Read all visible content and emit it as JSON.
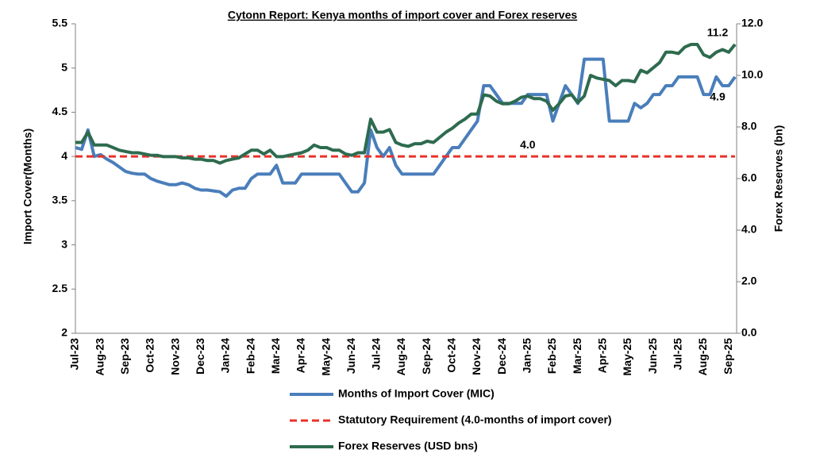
{
  "chart_data": {
    "type": "line",
    "title": "Cytonn Report: Kenya months of import cover and Forex reserves",
    "y_label": "Import Cover(Months)",
    "y2_label": "Forex Reserves (bn)",
    "categories": [
      "Jul-23",
      null,
      null,
      null,
      "Aug-23",
      null,
      null,
      null,
      "Sep-23",
      null,
      null,
      null,
      "Oct-23",
      null,
      null,
      null,
      "Nov-23",
      null,
      null,
      null,
      "Dec-23",
      null,
      null,
      null,
      "Jan-24",
      null,
      null,
      null,
      "Feb-24",
      null,
      null,
      null,
      "Mar-24",
      null,
      null,
      null,
      "Apr-24",
      null,
      null,
      null,
      "May-24",
      null,
      null,
      null,
      "Jun-24",
      null,
      null,
      null,
      "Jul-24",
      null,
      null,
      null,
      "Aug-24",
      null,
      null,
      null,
      "Sep-24",
      null,
      null,
      null,
      "Oct-24",
      null,
      null,
      null,
      "Nov-24",
      null,
      null,
      null,
      "Dec-24",
      null,
      null,
      null,
      "Jan-25",
      null,
      null,
      null,
      "Feb-25",
      null,
      null,
      null,
      "Mar-25",
      null,
      null,
      null,
      "Apr-25",
      null,
      null,
      null,
      "May-25",
      null,
      null,
      null,
      "Jun-25",
      null,
      null,
      null,
      "Jul-25",
      null,
      null,
      null,
      "Aug-25",
      null,
      null,
      null,
      "Sep-25",
      null
    ],
    "series": [
      {
        "name": "Months of Import Cover (MIC)",
        "color": "#4a7ebb",
        "axis": "y",
        "style": "solid",
        "values": [
          4.1,
          4.08,
          4.3,
          4.0,
          4.02,
          3.97,
          3.93,
          3.88,
          3.83,
          3.81,
          3.8,
          3.8,
          3.75,
          3.72,
          3.7,
          3.68,
          3.68,
          3.7,
          3.68,
          3.64,
          3.62,
          3.62,
          3.61,
          3.6,
          3.55,
          3.62,
          3.64,
          3.64,
          3.75,
          3.8,
          3.8,
          3.8,
          3.9,
          3.7,
          3.7,
          3.7,
          3.8,
          3.8,
          3.8,
          3.8,
          3.8,
          3.8,
          3.8,
          3.7,
          3.6,
          3.6,
          3.7,
          4.3,
          4.1,
          4.0,
          4.1,
          3.9,
          3.8,
          3.8,
          3.8,
          3.8,
          3.8,
          3.8,
          3.9,
          4.0,
          4.1,
          4.1,
          4.2,
          4.3,
          4.4,
          4.8,
          4.8,
          4.7,
          4.6,
          4.6,
          4.6,
          4.6,
          4.7,
          4.7,
          4.7,
          4.7,
          4.4,
          4.6,
          4.8,
          4.7,
          4.6,
          5.1,
          5.1,
          5.1,
          5.1,
          4.4,
          4.4,
          4.4,
          4.4,
          4.6,
          4.55,
          4.6,
          4.7,
          4.7,
          4.8,
          4.8,
          4.9,
          4.9,
          4.9,
          4.9,
          4.7,
          4.7,
          4.9,
          4.8,
          4.8,
          4.9
        ]
      },
      {
        "name": "Statutory Requirement (4.0-months of import cover)",
        "color": "#e8322a",
        "axis": "y",
        "style": "dashed",
        "values": [
          4,
          4,
          4,
          4,
          4,
          4,
          4,
          4,
          4,
          4,
          4,
          4,
          4,
          4,
          4,
          4,
          4,
          4,
          4,
          4,
          4,
          4,
          4,
          4,
          4,
          4,
          4,
          4,
          4,
          4,
          4,
          4,
          4,
          4,
          4,
          4,
          4,
          4,
          4,
          4,
          4,
          4,
          4,
          4,
          4,
          4,
          4,
          4,
          4,
          4,
          4,
          4,
          4,
          4,
          4,
          4,
          4,
          4,
          4,
          4,
          4,
          4,
          4,
          4,
          4,
          4,
          4,
          4,
          4,
          4,
          4,
          4,
          4,
          4,
          4,
          4,
          4,
          4,
          4,
          4,
          4,
          4,
          4,
          4,
          4,
          4,
          4,
          4,
          4,
          4,
          4,
          4,
          4,
          4,
          4,
          4,
          4,
          4,
          4,
          4,
          4,
          4,
          4,
          4,
          4,
          4
        ]
      },
      {
        "name": "Forex Reserves (USD bns)",
        "color": "#2e6b4f",
        "axis": "y2",
        "style": "solid",
        "values": [
          7.4,
          7.4,
          7.8,
          7.3,
          7.3,
          7.3,
          7.2,
          7.1,
          7.05,
          7.0,
          7.0,
          6.95,
          6.9,
          6.9,
          6.85,
          6.85,
          6.85,
          6.8,
          6.8,
          6.75,
          6.75,
          6.7,
          6.7,
          6.6,
          6.7,
          6.75,
          6.8,
          6.95,
          7.1,
          7.1,
          6.95,
          7.1,
          6.85,
          6.85,
          6.9,
          6.95,
          7.0,
          7.1,
          7.3,
          7.2,
          7.2,
          7.1,
          7.1,
          6.95,
          6.9,
          7.0,
          7.0,
          8.3,
          7.8,
          7.8,
          7.9,
          7.4,
          7.3,
          7.25,
          7.35,
          7.35,
          7.45,
          7.4,
          7.6,
          7.8,
          7.95,
          8.15,
          8.3,
          8.5,
          8.5,
          9.25,
          9.2,
          9.0,
          8.9,
          8.9,
          9.0,
          9.15,
          9.2,
          9.1,
          9.1,
          9.0,
          8.65,
          8.9,
          9.2,
          9.25,
          8.95,
          9.2,
          10.0,
          9.9,
          9.85,
          9.8,
          9.6,
          9.8,
          9.8,
          9.75,
          10.2,
          10.1,
          10.3,
          10.5,
          10.9,
          10.9,
          10.85,
          11.1,
          11.2,
          11.2,
          10.8,
          10.7,
          10.9,
          11.0,
          10.9,
          11.2
        ]
      }
    ],
    "annotations": [
      {
        "text": "4.0",
        "series": 1
      },
      {
        "text": "11.2",
        "series": 2
      },
      {
        "text": "4.9",
        "series": 0
      }
    ],
    "ylim": [
      2,
      5.5
    ],
    "yticks": [
      2,
      2.5,
      3,
      3.5,
      4,
      4.5,
      5,
      5.5
    ],
    "y2lim": [
      0,
      12
    ],
    "y2ticks": [
      {
        "value": 0,
        "label": "0.0"
      },
      {
        "value": 2,
        "label": "2.0"
      },
      {
        "value": 4,
        "label": "4.0"
      },
      {
        "value": 6,
        "label": "6.0"
      },
      {
        "value": 8,
        "label": "8.0"
      },
      {
        "value": 10,
        "label": "10.0"
      },
      {
        "value": 12,
        "label": "12.0"
      }
    ],
    "grid": false,
    "legend": "bottom"
  }
}
